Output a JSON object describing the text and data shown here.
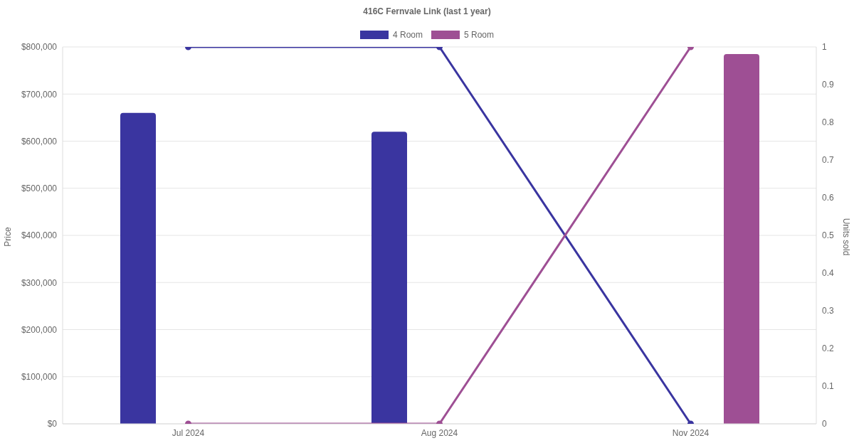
{
  "chart_data": {
    "type": "bar",
    "title": "416C Fernvale Link (last 1 year)",
    "ylabel": "Price",
    "y2label": "Units sold",
    "categories": [
      "Jul 2024",
      "Aug 2024",
      "Nov 2024"
    ],
    "series": [
      {
        "name": "4 Room",
        "color": "#3a35a0",
        "values": [
          660000,
          620000,
          null
        ]
      },
      {
        "name": "5 Room",
        "color": "#9e4f94",
        "values": [
          null,
          null,
          785000
        ]
      },
      {
        "type": "line",
        "axis": "y2",
        "color": "#3a35a0",
        "values": [
          1,
          1,
          0
        ]
      },
      {
        "type": "line",
        "axis": "y2",
        "color": "#9e4f94",
        "values": [
          0,
          0,
          1
        ]
      }
    ],
    "ylim": [
      0,
      800000
    ],
    "yticks": [
      {
        "value": 0,
        "label": "$0"
      },
      {
        "value": 100000,
        "label": "$100,000"
      },
      {
        "value": 200000,
        "label": "$200,000"
      },
      {
        "value": 300000,
        "label": "$300,000"
      },
      {
        "value": 400000,
        "label": "$400,000"
      },
      {
        "value": 500000,
        "label": "$500,000"
      },
      {
        "value": 600000,
        "label": "$600,000"
      },
      {
        "value": 700000,
        "label": "$700,000"
      },
      {
        "value": 800000,
        "label": "$800,000"
      }
    ],
    "y2lim": [
      0,
      1
    ],
    "y2ticks": [
      0,
      0.1,
      0.2,
      0.3,
      0.4,
      0.5,
      0.6,
      0.7,
      0.8,
      0.9,
      1
    ],
    "grid": "y",
    "legend": "top",
    "marker": "circle",
    "line_style": "solid"
  }
}
